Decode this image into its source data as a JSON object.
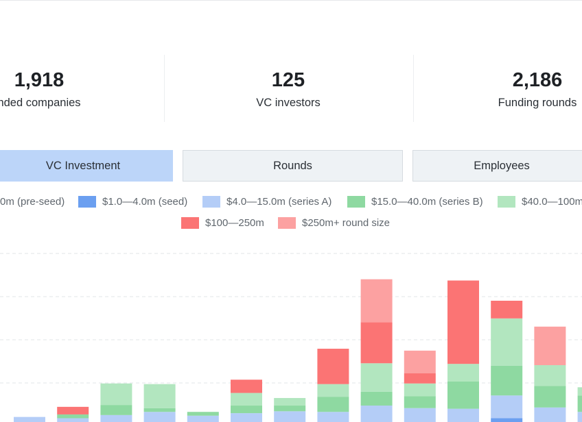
{
  "colors": {
    "seed": "#6b9ff0",
    "series_a": "#b4cdf7",
    "series_b": "#8ed9a1",
    "growth": "#b2e6bf",
    "late": "#fb7474",
    "mega": "#fca1a1",
    "grid": "#e1e4e7"
  },
  "stats": [
    {
      "value": "1,918",
      "label": "nded companies"
    },
    {
      "value": "125",
      "label": "VC investors"
    },
    {
      "value": "2,186",
      "label": "Funding rounds"
    }
  ],
  "tabs": [
    {
      "label": "VC Investment",
      "active": true
    },
    {
      "label": "Rounds",
      "active": false
    },
    {
      "label": "Employees",
      "active": false
    }
  ],
  "legend": [
    {
      "label": "0m (pre-seed)",
      "swatch": false
    },
    {
      "label": "$1.0—4.0m (seed)",
      "color": "#6b9ff0"
    },
    {
      "label": "$4.0—15.0m (series A)",
      "color": "#b4cdf7"
    },
    {
      "label": "$15.0—40.0m (series B)",
      "color": "#8ed9a1"
    },
    {
      "label": "$40.0—100m",
      "color": "#b2e6bf"
    },
    {
      "label": "$100—250m",
      "color": "#fb7474"
    },
    {
      "label": "$250m+ round size",
      "color": "#fca1a1"
    }
  ],
  "chart_data": {
    "type": "bar",
    "stacked": true,
    "grid": true,
    "categories": [
      "",
      "",
      "",
      "",
      "",
      "",
      "",
      "",
      "",
      "",
      "",
      "",
      "",
      ""
    ],
    "series": [
      {
        "name": "$1.0—4.0m (seed)",
        "color": "#6b9ff0",
        "values": [
          0,
          0,
          0,
          0,
          0,
          0,
          0,
          0,
          0,
          0,
          0,
          6,
          0,
          0
        ]
      },
      {
        "name": "$4.0—15.0m (series A)",
        "color": "#b4cdf7",
        "values": [
          8,
          6,
          11,
          16,
          10,
          14,
          17,
          16,
          26,
          22,
          21,
          36,
          23,
          16
        ]
      },
      {
        "name": "$15.0—40.0m (series B)",
        "color": "#8ed9a1",
        "values": [
          0,
          6,
          16,
          6,
          6,
          12,
          9,
          24,
          22,
          19,
          43,
          47,
          34,
          26
        ]
      },
      {
        "name": "$40.0—100m",
        "color": "#b2e6bf",
        "values": [
          0,
          0,
          34,
          38,
          0,
          20,
          12,
          20,
          45,
          20,
          28,
          75,
          33,
          13
        ]
      },
      {
        "name": "$100—250m",
        "color": "#fb7474",
        "values": [
          0,
          12,
          0,
          0,
          0,
          21,
          0,
          56,
          65,
          16,
          132,
          28,
          0,
          0
        ]
      },
      {
        "name": "$250m+ round size",
        "color": "#fca1a1",
        "values": [
          0,
          0,
          0,
          0,
          0,
          0,
          0,
          0,
          68,
          36,
          0,
          0,
          61,
          0
        ]
      }
    ],
    "xlabel": "",
    "ylabel": ""
  }
}
